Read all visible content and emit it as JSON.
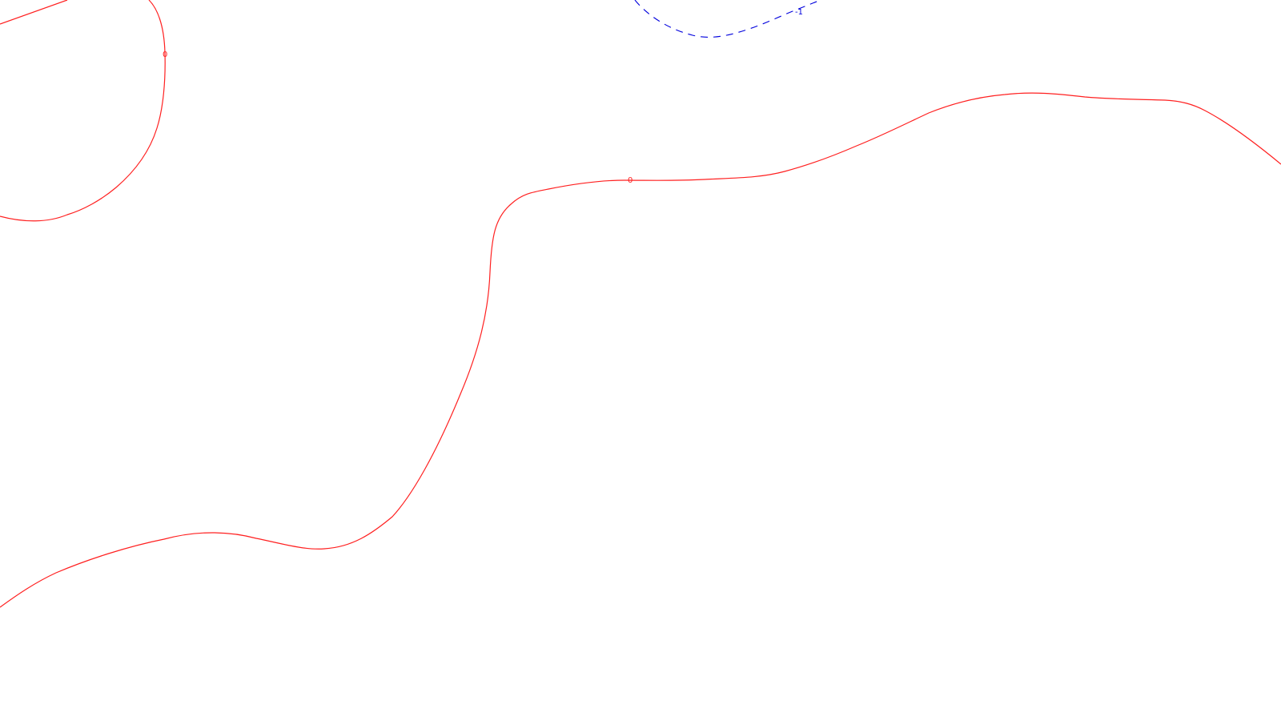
{
  "map": {
    "colors": {
      "zero_contour": "#ff2020",
      "negative_contour": "#0000dd",
      "background": "#ffffff"
    },
    "contours": [
      {
        "id": "upper-left-zero-contour",
        "level_label": "0",
        "style": "solid"
      },
      {
        "id": "main-zero-contour",
        "level_label": "0",
        "style": "solid"
      },
      {
        "id": "upper-right-zero-contour",
        "level_label": "",
        "style": "solid"
      },
      {
        "id": "negative-one-contour",
        "level_label": "-1",
        "style": "dashed"
      }
    ]
  }
}
